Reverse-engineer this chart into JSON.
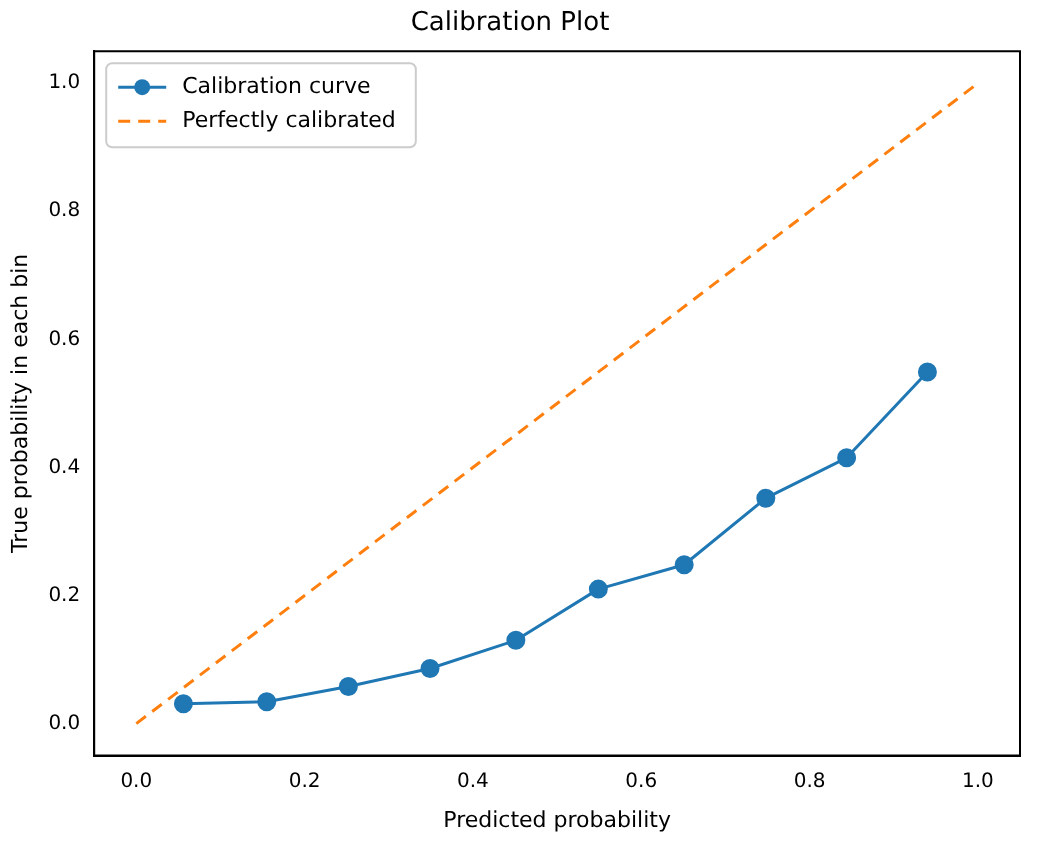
{
  "chart_data": {
    "type": "line",
    "title": "Calibration Plot",
    "xlabel": "Predicted probability",
    "ylabel": "True probability in each bin",
    "xlim": [
      -0.05,
      1.05
    ],
    "ylim": [
      -0.05,
      1.05
    ],
    "xticks": [
      {
        "value": 0,
        "label": "0.0"
      },
      {
        "value": 0.2,
        "label": "0.2"
      },
      {
        "value": 0.4,
        "label": "0.4"
      },
      {
        "value": 0.6,
        "label": "0.6"
      },
      {
        "value": 0.8,
        "label": "0.8"
      },
      {
        "value": 1,
        "label": "1.0"
      }
    ],
    "yticks": [
      {
        "value": 0,
        "label": "0.0"
      },
      {
        "value": 0.2,
        "label": "0.2"
      },
      {
        "value": 0.4,
        "label": "0.4"
      },
      {
        "value": 0.6,
        "label": "0.6"
      },
      {
        "value": 0.8,
        "label": "0.8"
      },
      {
        "value": 1,
        "label": "1.0"
      }
    ],
    "grid": false,
    "legend": "top left",
    "series": [
      {
        "name": "Calibration curve",
        "color": "#1f77b4",
        "marker": "circle",
        "line_style": "solid",
        "x": [
          0.056,
          0.155,
          0.252,
          0.349,
          0.451,
          0.549,
          0.651,
          0.748,
          0.844,
          0.94
        ],
        "values": [
          0.031,
          0.034,
          0.058,
          0.086,
          0.13,
          0.21,
          0.248,
          0.352,
          0.415,
          0.549
        ]
      },
      {
        "name": "Perfectly calibrated",
        "color": "#ff7f0e",
        "marker": "none",
        "line_style": "dashed",
        "x": [
          0,
          1
        ],
        "values": [
          0,
          1
        ]
      }
    ]
  }
}
